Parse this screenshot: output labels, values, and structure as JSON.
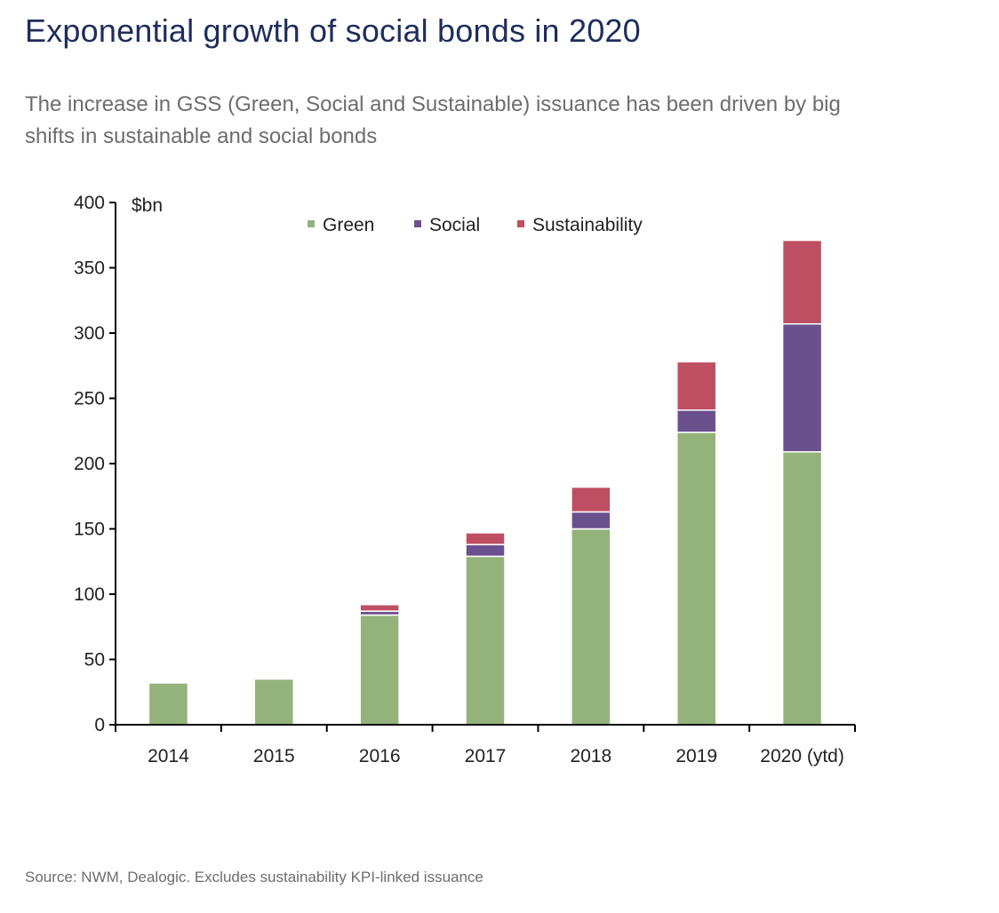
{
  "title": "Exponential growth of social bonds in 2020",
  "subtitle": "The increase in GSS (Green, Social and Sustainable) issuance has been driven by big shifts in sustainable and social bonds",
  "source": "Source:  NWM, Dealogic. Excludes sustainability KPI-linked issuance",
  "chart_data": {
    "type": "bar",
    "stacked": true,
    "title": "Exponential growth of social bonds in 2020",
    "xlabel": "",
    "ylabel": "$bn",
    "ylim": [
      0,
      400
    ],
    "yticks": [
      0,
      50,
      100,
      150,
      200,
      250,
      300,
      350,
      400
    ],
    "categories": [
      "2014",
      "2015",
      "2016",
      "2017",
      "2018",
      "2019",
      "2020 (ytd)"
    ],
    "series": [
      {
        "name": "Green",
        "color": "#93b37a",
        "values": [
          32,
          35,
          84,
          129,
          150,
          224,
          209
        ]
      },
      {
        "name": "Social",
        "color": "#6b508e",
        "values": [
          0,
          0,
          3,
          9,
          13,
          17,
          98
        ]
      },
      {
        "name": "Sustainability",
        "color": "#be4f63",
        "values": [
          0,
          0,
          5,
          9,
          19,
          37,
          64
        ]
      }
    ],
    "legend": "top-center",
    "grid": false
  }
}
